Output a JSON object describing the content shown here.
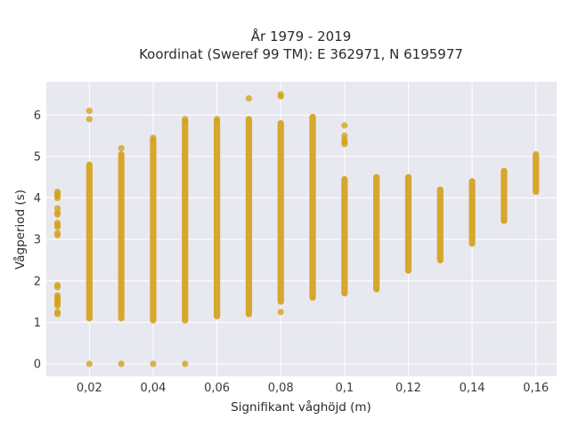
{
  "chart_data": {
    "type": "scatter",
    "title_line1": "År 1979 - 2019",
    "title_line2": "Koordinat (Sweref 99 TM): E 362971, N 6195977",
    "xlabel": "Signifikant våghöjd (m)",
    "ylabel": "Vågperiod (s)",
    "xlim": [
      0.0065,
      0.1665
    ],
    "ylim": [
      -0.3,
      6.8
    ],
    "xticks": [
      0.02,
      0.04,
      0.06,
      0.08,
      0.1,
      0.12,
      0.14,
      0.16
    ],
    "xtick_labels": [
      "0,02",
      "0,04",
      "0,06",
      "0,08",
      "0,1",
      "0,12",
      "0,14",
      "0,16"
    ],
    "yticks": [
      0,
      1,
      2,
      3,
      4,
      5,
      6
    ],
    "ytick_labels": [
      "0",
      "1",
      "2",
      "3",
      "4",
      "5",
      "6"
    ],
    "grid": true,
    "point_color": "#D4A017",
    "plot_background": "#E8E8F0",
    "columns": [
      {
        "x": 0.01,
        "bar": null,
        "scatter": [
          1.2,
          1.25,
          1.4,
          1.45,
          1.5,
          1.55,
          1.6,
          1.65,
          1.85,
          1.9,
          3.1,
          3.15,
          3.3,
          3.35,
          3.4,
          3.6,
          3.65,
          3.75,
          4.0,
          4.05,
          4.1,
          4.15
        ]
      },
      {
        "x": 0.02,
        "bar": [
          1.1,
          4.8
        ],
        "scatter": [
          0.0,
          5.9,
          6.1
        ]
      },
      {
        "x": 0.03,
        "bar": [
          1.1,
          5.05
        ],
        "scatter": [
          0.0,
          5.2
        ]
      },
      {
        "x": 0.04,
        "bar": [
          1.05,
          5.4
        ],
        "scatter": [
          0.0,
          5.45
        ]
      },
      {
        "x": 0.05,
        "bar": [
          1.05,
          5.8
        ],
        "scatter": [
          0.0,
          5.85,
          5.9
        ]
      },
      {
        "x": 0.06,
        "bar": [
          1.15,
          5.85
        ],
        "scatter": [
          5.9
        ]
      },
      {
        "x": 0.07,
        "bar": [
          1.2,
          5.9
        ],
        "scatter": [
          6.4
        ]
      },
      {
        "x": 0.08,
        "bar": [
          1.5,
          5.8
        ],
        "scatter": [
          1.25,
          6.45,
          6.5
        ]
      },
      {
        "x": 0.09,
        "bar": [
          1.6,
          5.95
        ],
        "scatter": []
      },
      {
        "x": 0.1,
        "bar": [
          1.7,
          4.45
        ],
        "scatter": [
          5.3,
          5.35,
          5.4,
          5.5,
          5.75
        ]
      },
      {
        "x": 0.11,
        "bar": [
          1.8,
          4.5
        ],
        "scatter": []
      },
      {
        "x": 0.12,
        "bar": [
          2.25,
          4.5
        ],
        "scatter": []
      },
      {
        "x": 0.13,
        "bar": [
          2.5,
          4.2
        ],
        "scatter": []
      },
      {
        "x": 0.14,
        "bar": [
          2.9,
          4.4
        ],
        "scatter": []
      },
      {
        "x": 0.15,
        "bar": [
          3.45,
          4.65
        ],
        "scatter": []
      },
      {
        "x": 0.16,
        "bar": [
          4.15,
          5.05
        ],
        "scatter": []
      }
    ]
  }
}
